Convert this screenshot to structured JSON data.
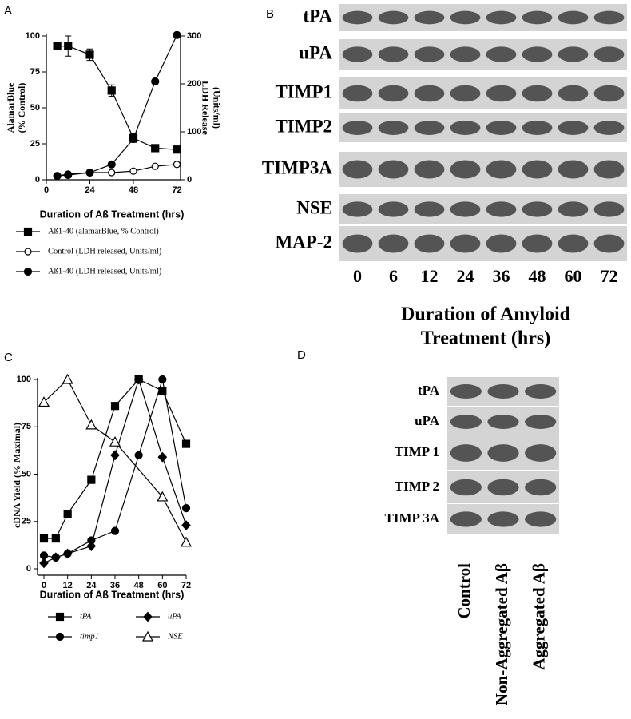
{
  "chart_data": [
    {
      "type": "line",
      "panel_label": "A",
      "x_label": "Duration of Aß Treatment (hrs)",
      "y_label": [
        "AlamarBlue",
        "(% Control)"
      ],
      "y2_label": [
        "LDH Release",
        "(Units/ml)"
      ],
      "x": [
        6,
        12,
        24,
        36,
        48,
        60,
        72
      ],
      "xlim": [
        0,
        74
      ],
      "xticks": [
        0,
        24,
        48,
        72
      ],
      "ylim": [
        0,
        100
      ],
      "yticks": [
        0,
        25,
        50,
        75,
        100
      ],
      "y2lim": [
        0,
        300
      ],
      "y2ticks": [
        0,
        100,
        200,
        300
      ],
      "legend": "bottom",
      "series": [
        {
          "name": "Aß1-40 (alamarBlue, % Control)",
          "color": "#000000",
          "marker": "square",
          "values": [
            93,
            93,
            87,
            62,
            29,
            22,
            21
          ],
          "errors": [
            null,
            7,
            4,
            4,
            3,
            2,
            2
          ]
        },
        {
          "name": "Control (LDH released, Units/ml)",
          "color": "#000000",
          "marker": "circle-open",
          "axis": "y2",
          "values": [
            8,
            12,
            15,
            15,
            18,
            28,
            32
          ]
        },
        {
          "name": "Aß1-40 (LDH released, Units/ml)",
          "color": "#000000",
          "marker": "circle",
          "axis": "y2",
          "values": [
            8,
            10,
            15,
            32,
            85,
            205,
            302
          ]
        }
      ]
    },
    {
      "type": "line",
      "panel_label": "C",
      "x_label": "Duration of Aß Treatment (hrs)",
      "y_label": [
        "cDNA Yield (% Maximal)"
      ],
      "x": [
        0,
        6,
        12,
        24,
        36,
        48,
        60,
        72
      ],
      "xlim": [
        0,
        72
      ],
      "xticks": [
        0,
        12,
        24,
        36,
        48,
        60,
        72
      ],
      "ylim": [
        0,
        100
      ],
      "yticks": [
        0,
        25,
        50,
        75,
        100
      ],
      "legend": "bottom",
      "series": [
        {
          "name": "tPA",
          "color": "#000000",
          "marker": "square",
          "values": [
            16,
            16,
            29,
            47,
            86,
            100,
            94,
            66
          ]
        },
        {
          "name": "uPA",
          "color": "#000000",
          "marker": "diamond",
          "values": [
            3,
            6,
            8,
            12,
            60,
            100,
            59,
            23
          ]
        },
        {
          "name": "timp1",
          "color": "#000000",
          "marker": "circle",
          "values": [
            7,
            6,
            8,
            15,
            20,
            60,
            100,
            32
          ]
        },
        {
          "name": "NSE",
          "color": "#000000",
          "marker": "triangle-open",
          "x": [
            0,
            12,
            24,
            36,
            60,
            72
          ],
          "values": [
            88,
            100,
            76,
            67,
            38,
            14
          ]
        }
      ]
    }
  ],
  "blot_panels": [
    {
      "panel_label": "B",
      "rows": [
        "tPA",
        "uPA",
        "TIMP1",
        "TIMP2",
        "TIMP3A",
        "NSE",
        "MAP-2"
      ],
      "columns": [
        "0",
        "6",
        "12",
        "24",
        "36",
        "48",
        "60",
        "72"
      ],
      "title": [
        "Duration of Amyloid",
        "Treatment (hrs)"
      ]
    },
    {
      "panel_label": "D",
      "rows": [
        "tPA",
        "uPA",
        "TIMP 1",
        "TIMP 2",
        "TIMP 3A"
      ],
      "columns": [
        "Control",
        "Non-Aggregated Aβ",
        "Aggregated Aβ"
      ]
    }
  ]
}
